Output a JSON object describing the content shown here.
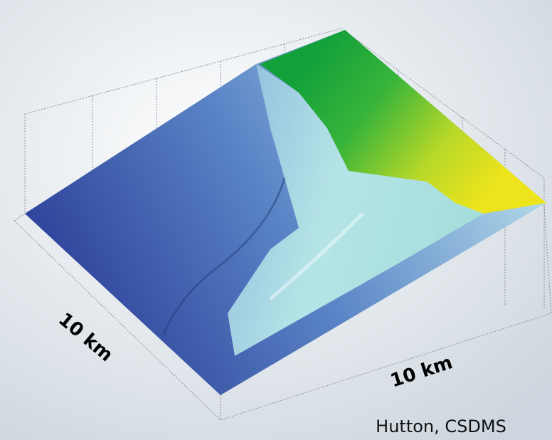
{
  "labels": {
    "left_scale": "10 km",
    "right_scale": "10 km"
  },
  "credit": "Hutton, CSDMS"
}
